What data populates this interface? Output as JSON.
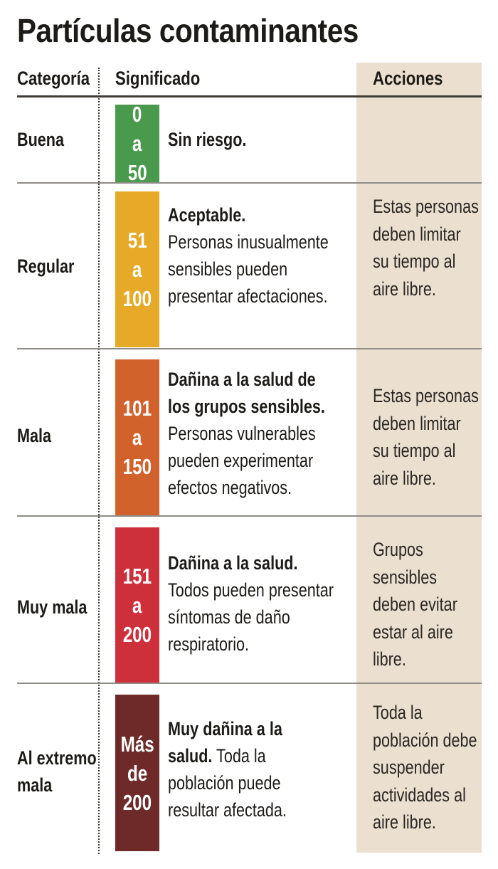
{
  "title": "Partículas contaminantes",
  "headers": {
    "category": "Categoría",
    "meaning": "Significado",
    "actions": "Acciones"
  },
  "rows": [
    {
      "category": [
        "Buena"
      ],
      "range": [
        "0",
        "a",
        "50"
      ],
      "color": "#4a9a4e",
      "meaning_bold": [
        "Sin riesgo."
      ],
      "meaning_rest": [],
      "actions": []
    },
    {
      "category": [
        "Regular"
      ],
      "range": [
        "51",
        "a",
        "100"
      ],
      "color": "#e6a928",
      "meaning_bold": [
        "Aceptable."
      ],
      "meaning_rest": [
        "Personas inusualmente",
        "sensibles pueden",
        "presentar afectaciones."
      ],
      "actions": [
        "Estas personas",
        "deben limitar",
        "su tiempo al",
        "aire libre."
      ]
    },
    {
      "category": [
        "Mala"
      ],
      "range": [
        "101",
        "a",
        "150"
      ],
      "color": "#d2622c",
      "meaning_bold": [
        "Dañina a la salud de",
        "los grupos sensibles."
      ],
      "meaning_rest": [
        "Personas vulnerables",
        "pueden experimentar",
        "efectos negativos."
      ],
      "actions": [
        "Estas personas",
        "deben limitar",
        "su tiempo al",
        "aire libre."
      ]
    },
    {
      "category": [
        "Muy mala"
      ],
      "range": [
        "151",
        "a",
        "200"
      ],
      "color": "#cd2f3b",
      "meaning_bold": [
        "Dañina a la salud."
      ],
      "meaning_rest": [
        "Todos pueden presentar",
        "síntomas de daño",
        "respiratorio."
      ],
      "actions": [
        "Grupos",
        "sensibles",
        "deben evitar",
        "estar al aire",
        "libre."
      ]
    },
    {
      "category": [
        "Al extremo",
        "mala"
      ],
      "range": [
        "Más",
        "de",
        "200"
      ],
      "color": "#6e2a29",
      "meaning_bold": [
        "Muy dañina a la",
        "salud."
      ],
      "meaning_tail": " Toda la",
      "meaning_rest": [
        "población puede",
        "resultar afectada."
      ],
      "actions": [
        "Toda la",
        "población debe",
        "suspender",
        "actividades al",
        "aire libre."
      ]
    }
  ]
}
